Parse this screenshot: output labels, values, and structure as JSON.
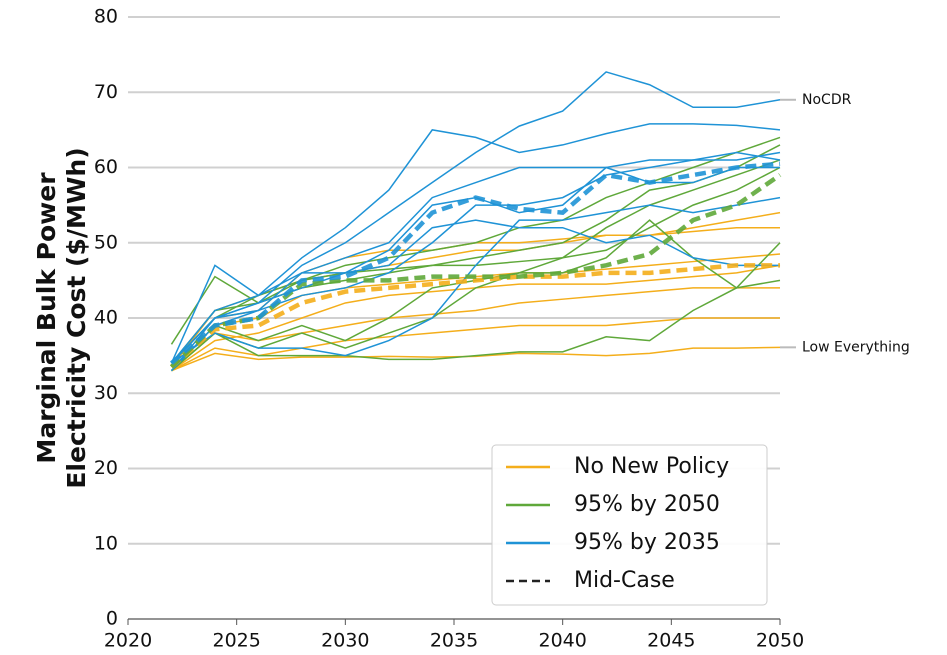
{
  "chart_data": {
    "type": "line",
    "ylabel": [
      "Marginal Bulk Power",
      "Electricity Cost ($/MWh)"
    ],
    "x": [
      2022,
      2024,
      2026,
      2028,
      2030,
      2032,
      2034,
      2036,
      2038,
      2040,
      2042,
      2044,
      2046,
      2048,
      2050
    ],
    "xlim": [
      2020,
      2050
    ],
    "xticks": [
      2020,
      2025,
      2030,
      2035,
      2040,
      2045,
      2050
    ],
    "ylim": [
      0,
      80
    ],
    "yticks": [
      0,
      10,
      20,
      30,
      40,
      50,
      60,
      70,
      80
    ],
    "grid": true,
    "legend": "lower right",
    "mid_case_name": "Mid-Case",
    "mid_case_color": "#222222",
    "series": [
      {
        "name": "No New Policy",
        "color": "#f4ae1b",
        "runs": [
          {
            "values": [
              33,
              35.3,
              34.5,
              34.8,
              34.8,
              34.9,
              34.8,
              34.9,
              35.3,
              35.2,
              35.0,
              35.3,
              36.0,
              36.0,
              36.1
            ],
            "label": "Low Everything"
          },
          {
            "values": [
              33,
              39,
              40,
              43,
              44,
              44.5,
              45,
              45.5,
              46,
              46,
              46.5,
              47,
              47.5,
              48,
              48.5
            ]
          },
          {
            "values": [
              33.5,
              41,
              43,
              45,
              46,
              47,
              48,
              49,
              49,
              50,
              51,
              51,
              52,
              53,
              54
            ]
          },
          {
            "values": [
              33,
              37,
              38,
              40,
              42,
              43,
              43.5,
              44,
              44.5,
              44.5,
              44.5,
              45,
              45.5,
              46,
              47
            ]
          },
          {
            "values": [
              34,
              40,
              41,
              46,
              48,
              49,
              49,
              50,
              50,
              50.5,
              51,
              51,
              51.5,
              52,
              52
            ]
          },
          {
            "values": [
              33,
              38,
              37,
              38,
              39,
              40,
              40.5,
              41,
              42,
              42.5,
              43,
              43.5,
              44,
              44,
              44
            ]
          },
          {
            "values": [
              33,
              36,
              35,
              36,
              37,
              37.5,
              38,
              38.5,
              39,
              39,
              39,
              39.5,
              40,
              40,
              40
            ]
          }
        ],
        "mid_case": [
          33.5,
          38.5,
          39,
          42,
          43.5,
          44,
          44.5,
          45,
          45.5,
          45.5,
          46,
          46,
          46.5,
          47,
          47
        ]
      },
      {
        "name": "95% by 2050",
        "color": "#5fa83a",
        "runs": [
          {
            "values": [
              36.5,
              45.5,
              42,
              45,
              47,
              48,
              49,
              50,
              52,
              53,
              56,
              58,
              60,
              62,
              64
            ]
          },
          {
            "values": [
              33,
              38,
              36,
              38,
              36,
              38,
              40,
              44,
              46,
              48,
              52,
              55,
              57,
              59,
              61
            ]
          },
          {
            "values": [
              33,
              38,
              35,
              35,
              35,
              34.5,
              34.5,
              35,
              35.5,
              35.5,
              37.5,
              37,
              41,
              44,
              45
            ]
          },
          {
            "values": [
              34,
              40,
              43,
              45,
              46,
              46.5,
              47,
              47,
              47.5,
              48,
              49,
              52,
              55,
              57,
              60
            ]
          },
          {
            "values": [
              33,
              39,
              37,
              39,
              37,
              40,
              44,
              45,
              46,
              46,
              48,
              53,
              48,
              44,
              50
            ]
          },
          {
            "values": [
              34,
              41,
              42,
              44,
              45,
              46,
              47,
              48,
              49,
              50,
              53,
              57,
              58,
              60,
              63
            ]
          }
        ],
        "mid_case": [
          33.5,
          39,
          40,
          44.5,
          45,
          45,
          45.5,
          45.5,
          45.5,
          46,
          47,
          48.5,
          53,
          55,
          59
        ]
      },
      {
        "name": "95% by 2035",
        "color": "#1f93d6",
        "runs": [
          {
            "values": [
              34,
              40,
              42,
              47,
              50,
              54,
              58,
              62,
              65.5,
              67.5,
              72.7,
              71,
              68,
              68,
              69
            ],
            "label": "NoCDR"
          },
          {
            "values": [
              34,
              47,
              43,
              48,
              52,
              57,
              65,
              64,
              62,
              63,
              64.5,
              65.8,
              65.8,
              65.6,
              65
            ]
          },
          {
            "values": [
              34,
              41,
              43,
              46,
              46,
              49,
              55,
              56,
              54,
              55,
              60,
              58,
              58,
              60,
              60
            ]
          },
          {
            "values": [
              33,
              39,
              41,
              43,
              44,
              46,
              50,
              55,
              55,
              56,
              59,
              60,
              61,
              62,
              61
            ]
          },
          {
            "values": [
              34,
              38,
              36,
              36,
              35,
              37,
              40,
              47,
              53,
              53,
              54,
              55,
              54,
              55,
              56
            ]
          },
          {
            "values": [
              33,
              40,
              41,
              46,
              48,
              50,
              56,
              58,
              60,
              60,
              60,
              61,
              61,
              61,
              62
            ]
          },
          {
            "values": [
              34,
              40,
              42,
              44,
              46,
              47,
              52,
              53,
              52,
              52,
              50,
              51,
              48,
              47,
              47
            ]
          }
        ],
        "mid_case": [
          34,
          39,
          40,
          45,
          45.5,
          48,
          54,
          56,
          54.5,
          54,
          59,
          58,
          59,
          60,
          60.5
        ]
      }
    ]
  }
}
